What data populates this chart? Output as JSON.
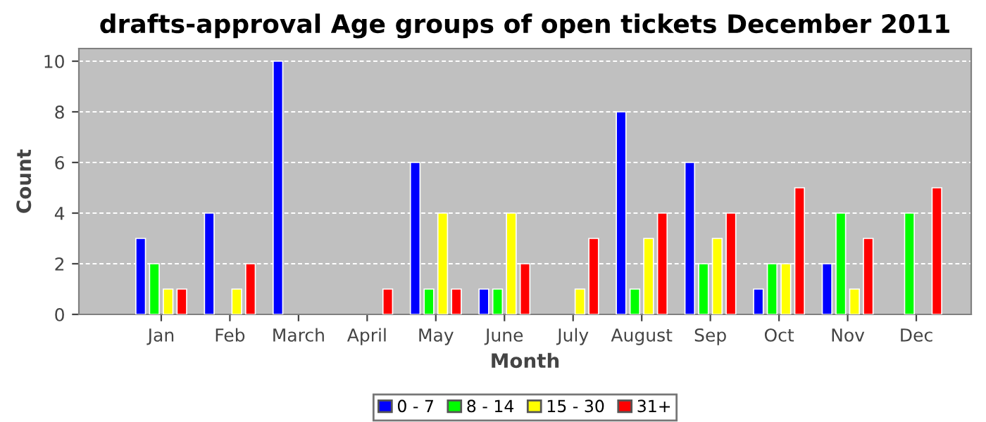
{
  "chart_data": {
    "type": "bar",
    "title": "drafts-approval Age groups of open tickets December 2011",
    "xlabel": "Month",
    "ylabel": "Count",
    "categories": [
      "Jan",
      "Feb",
      "March",
      "April",
      "May",
      "June",
      "July",
      "August",
      "Sep",
      "Oct",
      "Nov",
      "Dec"
    ],
    "series": [
      {
        "name": "0 - 7",
        "color": "#0000ff",
        "values": [
          3,
          4,
          10,
          0,
          6,
          1,
          0,
          8,
          6,
          1,
          2,
          0
        ]
      },
      {
        "name": "8 - 14",
        "color": "#00ff00",
        "values": [
          2,
          0,
          0,
          0,
          1,
          1,
          0,
          1,
          2,
          2,
          4,
          4
        ]
      },
      {
        "name": "15 - 30",
        "color": "#ffff00",
        "values": [
          1,
          1,
          0,
          0,
          4,
          4,
          1,
          3,
          3,
          2,
          1,
          0
        ]
      },
      {
        "name": "31+",
        "color": "#ff0000",
        "values": [
          1,
          2,
          0,
          1,
          1,
          2,
          3,
          4,
          4,
          5,
          3,
          5
        ]
      }
    ],
    "ylim": [
      0,
      10.5
    ],
    "yticks": [
      0,
      2,
      4,
      6,
      8,
      10
    ],
    "grid": "y",
    "legend": "bottom"
  }
}
